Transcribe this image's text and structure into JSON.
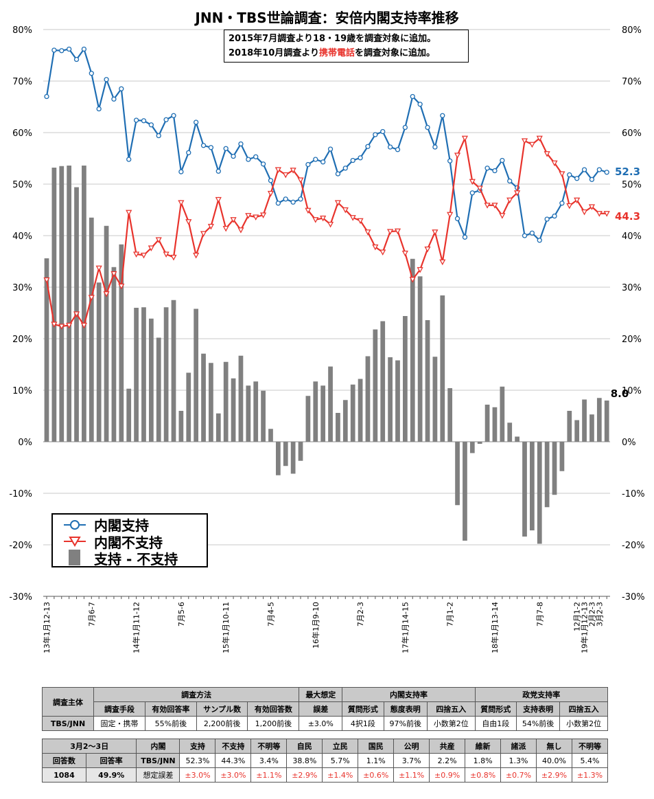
{
  "title": "JNN・TBS世論調査：安倍内閣支持率推移",
  "notes": {
    "line1": "2015年7月調査より18・19歳を調査対象に追加。",
    "line2_pre": "2018年10月調査より",
    "line2_em": "携帯電話",
    "line2_post": "を調査対象に追加。"
  },
  "legend": {
    "support": "内閣支持",
    "nonsupport": "内閣不支持",
    "diff": "支持 - 不支持"
  },
  "colors": {
    "support": "#1f6eb3",
    "nonsupport": "#e8332c",
    "diff": "#808080"
  },
  "chart_data": {
    "type": "line",
    "title": "JNN・TBS世論調査：安倍内閣支持率推移",
    "ylim": [
      -30,
      80
    ],
    "yticks": [
      "80%",
      "70%",
      "60%",
      "50%",
      "40%",
      "30%",
      "20%",
      "10%",
      "0%",
      "-10%",
      "-20%",
      "-30%"
    ],
    "grid": true,
    "legend_position": "bottom-left",
    "x_tick_labels": [
      {
        "i": 0,
        "label": "13年1月12-13"
      },
      {
        "i": 6,
        "label": "7月6-7"
      },
      {
        "i": 12,
        "label": "14年1月11-12"
      },
      {
        "i": 18,
        "label": "7月5-6"
      },
      {
        "i": 24,
        "label": "15年1月10-11"
      },
      {
        "i": 30,
        "label": "7月4-5"
      },
      {
        "i": 36,
        "label": "16年1月9-10"
      },
      {
        "i": 42,
        "label": "7月2-3"
      },
      {
        "i": 48,
        "label": "17年1月14-15"
      },
      {
        "i": 54,
        "label": "7月1-2"
      },
      {
        "i": 60,
        "label": "18年1月13-14"
      },
      {
        "i": 66,
        "label": "7月7-8"
      },
      {
        "i": 71,
        "label": "12月1-2"
      },
      {
        "i": 72,
        "label": "19年1月12-13"
      },
      {
        "i": 73,
        "label": "2月2-3"
      },
      {
        "i": 74,
        "label": "3月2-3"
      }
    ],
    "series": [
      {
        "name": "内閣支持",
        "color": "#1f6eb3",
        "marker": "circle",
        "values": [
          67.0,
          76.0,
          75.9,
          76.2,
          74.2,
          76.2,
          71.5,
          64.6,
          70.3,
          66.5,
          68.5,
          54.8,
          62.4,
          62.3,
          61.5,
          59.4,
          62.5,
          63.3,
          52.4,
          56.1,
          62.0,
          57.5,
          57.1,
          52.5,
          56.9,
          55.4,
          57.8,
          54.8,
          55.3,
          53.9,
          50.7,
          46.3,
          47.1,
          46.5,
          47.1,
          53.8,
          54.8,
          54.3,
          56.8,
          52.0,
          53.1,
          54.6,
          55.1,
          57.3,
          59.6,
          60.2,
          57.2,
          56.7,
          61.0,
          67.0,
          65.5,
          61.0,
          57.2,
          63.3,
          54.5,
          43.3,
          39.7,
          48.3,
          48.8,
          53.1,
          52.6,
          54.6,
          50.6,
          49.3,
          40.0,
          40.5,
          39.1,
          43.2,
          43.8,
          46.3,
          51.8,
          51.1,
          52.8,
          50.9,
          52.8,
          52.3
        ]
      },
      {
        "name": "内閣不支持",
        "color": "#e8332c",
        "marker": "triangle-down",
        "values": [
          31.4,
          22.8,
          22.4,
          22.6,
          24.8,
          22.6,
          28.0,
          33.7,
          28.7,
          32.6,
          30.2,
          44.5,
          36.4,
          36.2,
          37.6,
          39.2,
          36.4,
          35.8,
          46.4,
          42.7,
          36.2,
          40.4,
          41.8,
          47.0,
          41.4,
          43.1,
          41.1,
          43.9,
          43.6,
          44.0,
          48.2,
          52.8,
          51.8,
          52.7,
          50.8,
          44.9,
          43.1,
          43.4,
          42.2,
          46.4,
          45.0,
          43.5,
          42.9,
          40.7,
          37.8,
          36.8,
          40.8,
          40.9,
          36.6,
          31.5,
          33.4,
          37.4,
          40.7,
          34.9,
          44.1,
          55.6,
          58.9,
          50.5,
          49.2,
          45.9,
          45.9,
          43.9,
          46.9,
          48.3,
          58.4,
          57.7,
          58.9,
          55.9,
          54.1,
          52.0,
          45.8,
          46.9,
          44.6,
          45.6,
          44.3,
          44.3
        ]
      },
      {
        "name": "支持 - 不支持",
        "color": "#808080",
        "marker": "bar",
        "values": [
          35.6,
          53.2,
          53.5,
          53.6,
          49.4,
          53.6,
          43.5,
          30.9,
          41.9,
          33.9,
          38.3,
          10.3,
          26.0,
          26.1,
          23.9,
          20.2,
          26.1,
          27.5,
          6.0,
          13.4,
          25.8,
          17.1,
          15.3,
          5.5,
          15.5,
          12.3,
          16.7,
          10.9,
          11.7,
          9.9,
          2.5,
          -6.5,
          -4.7,
          -6.2,
          -3.7,
          8.9,
          11.7,
          10.9,
          14.6,
          5.6,
          8.1,
          11.1,
          12.2,
          16.6,
          21.8,
          23.4,
          16.4,
          15.8,
          24.4,
          35.5,
          32.1,
          23.6,
          16.5,
          28.4,
          10.4,
          -12.3,
          -19.2,
          -2.2,
          -0.4,
          7.2,
          6.7,
          10.7,
          3.7,
          1.0,
          -18.4,
          -17.2,
          -19.8,
          -12.7,
          -10.3,
          -5.7,
          6.0,
          4.2,
          8.2,
          5.3,
          8.5,
          8.0
        ]
      }
    ],
    "end_labels": {
      "support": "52.3",
      "nonsupport": "44.3",
      "diff": "8.0"
    }
  },
  "table1": {
    "header": {
      "org": "調査主体",
      "method": "調査方法",
      "error": "最大想定",
      "error2": "誤差",
      "cabinet": "内閣支持率",
      "party": "政党支持率"
    },
    "subheaders": [
      "調査手段",
      "有効回答率",
      "サンプル数",
      "有効回答数",
      "質問形式",
      "態度表明",
      "四捨五入",
      "質問形式",
      "支持表明",
      "四捨五入"
    ],
    "values": [
      "TBS/JNN",
      "固定・携帯",
      "55%前後",
      "2,200前後",
      "1,200前後",
      "±3.0%",
      "4択1段",
      "97%前後",
      "小数第2位",
      "自由1段",
      "54%前後",
      "小数第2位"
    ]
  },
  "table2": {
    "header": [
      "3月2〜3日",
      "内閣",
      "支持",
      "不支持",
      "不明等",
      "自民",
      "立民",
      "国民",
      "公明",
      "共産",
      "維新",
      "諸派",
      "無し",
      "不明等"
    ],
    "row1_labels": [
      "回答数",
      "回答率",
      "TBS/JNN"
    ],
    "row1_values": [
      "52.3%",
      "44.3%",
      "3.4%",
      "38.8%",
      "5.7%",
      "1.1%",
      "3.7%",
      "2.2%",
      "1.8%",
      "1.3%",
      "40.0%",
      "5.4%"
    ],
    "row2_labels": [
      "1084",
      "49.9%",
      "想定誤差"
    ],
    "row2_values": [
      "±3.0%",
      "±3.0%",
      "±1.1%",
      "±2.9%",
      "±1.4%",
      "±0.6%",
      "±1.1%",
      "±0.9%",
      "±0.8%",
      "±0.7%",
      "±2.9%",
      "±1.3%"
    ]
  }
}
